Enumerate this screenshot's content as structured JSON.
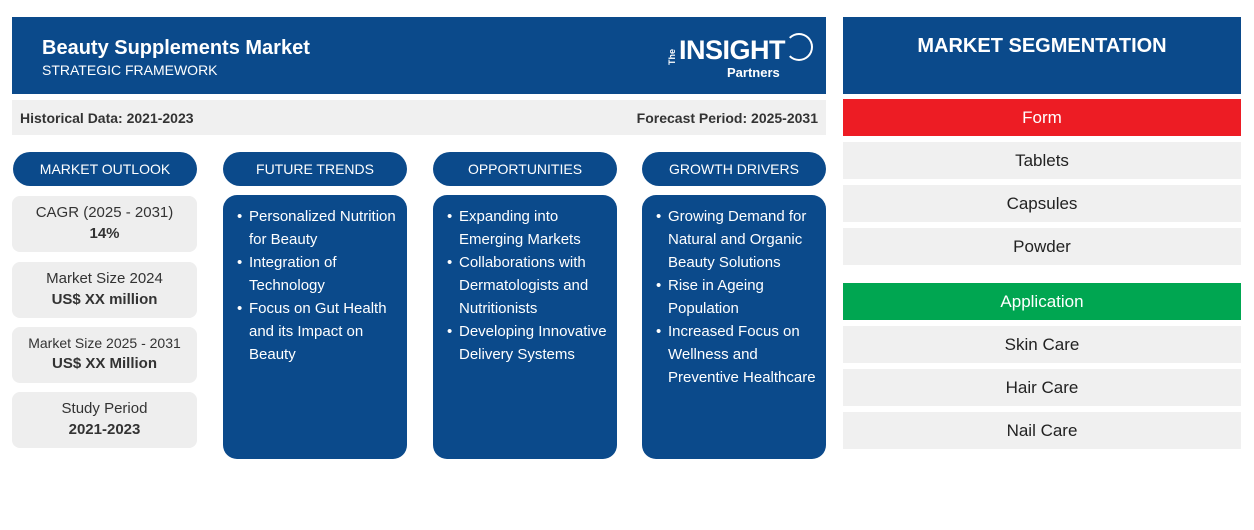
{
  "header": {
    "title": "Beauty Supplements Market",
    "subtitle": "STRATEGIC FRAMEWORK",
    "logo": {
      "the": "The",
      "insight": "INSIGHT",
      "partners": "Partners"
    }
  },
  "periods": {
    "historical": "Historical Data: 2021-2023",
    "forecast": "Forecast Period: 2025-2031"
  },
  "columns": {
    "market_outlook": "MARKET OUTLOOK",
    "future_trends": "FUTURE TRENDS",
    "opportunities": "OPPORTUNITIES",
    "growth_drivers": "GROWTH DRIVERS"
  },
  "stats": [
    {
      "label": "CAGR (2025 - 2031)",
      "value": "14%"
    },
    {
      "label": "Market Size 2024",
      "value": "US$ XX million"
    },
    {
      "label": "Market Size 2025 - 2031",
      "value": "US$ XX Million"
    },
    {
      "label": "Study Period",
      "value": "2021-2023"
    }
  ],
  "future_trends": [
    "Personalized Nutrition for Beauty",
    "Integration of Technology",
    "Focus on Gut Health and its Impact on Beauty"
  ],
  "opportunities": [
    "Expanding into Emerging Markets",
    "Collaborations with Dermatologists and Nutritionists",
    "Developing Innovative Delivery Systems"
  ],
  "growth_drivers": [
    "Growing Demand for Natural and Organic Beauty Solutions",
    "Rise in Ageing Population",
    "Increased Focus on Wellness and Preventive Healthcare"
  ],
  "segmentation": {
    "title": "MARKET SEGMENTATION",
    "form": {
      "label": "Form",
      "color": "#ed1c24",
      "items": [
        "Tablets",
        "Capsules",
        "Powder"
      ]
    },
    "application": {
      "label": "Application",
      "color": "#00a651",
      "items": [
        "Skin Care",
        "Hair Care",
        "Nail Care"
      ]
    }
  },
  "colors": {
    "primary": "#0b4a8b",
    "light_gray": "#f0f0f0"
  }
}
